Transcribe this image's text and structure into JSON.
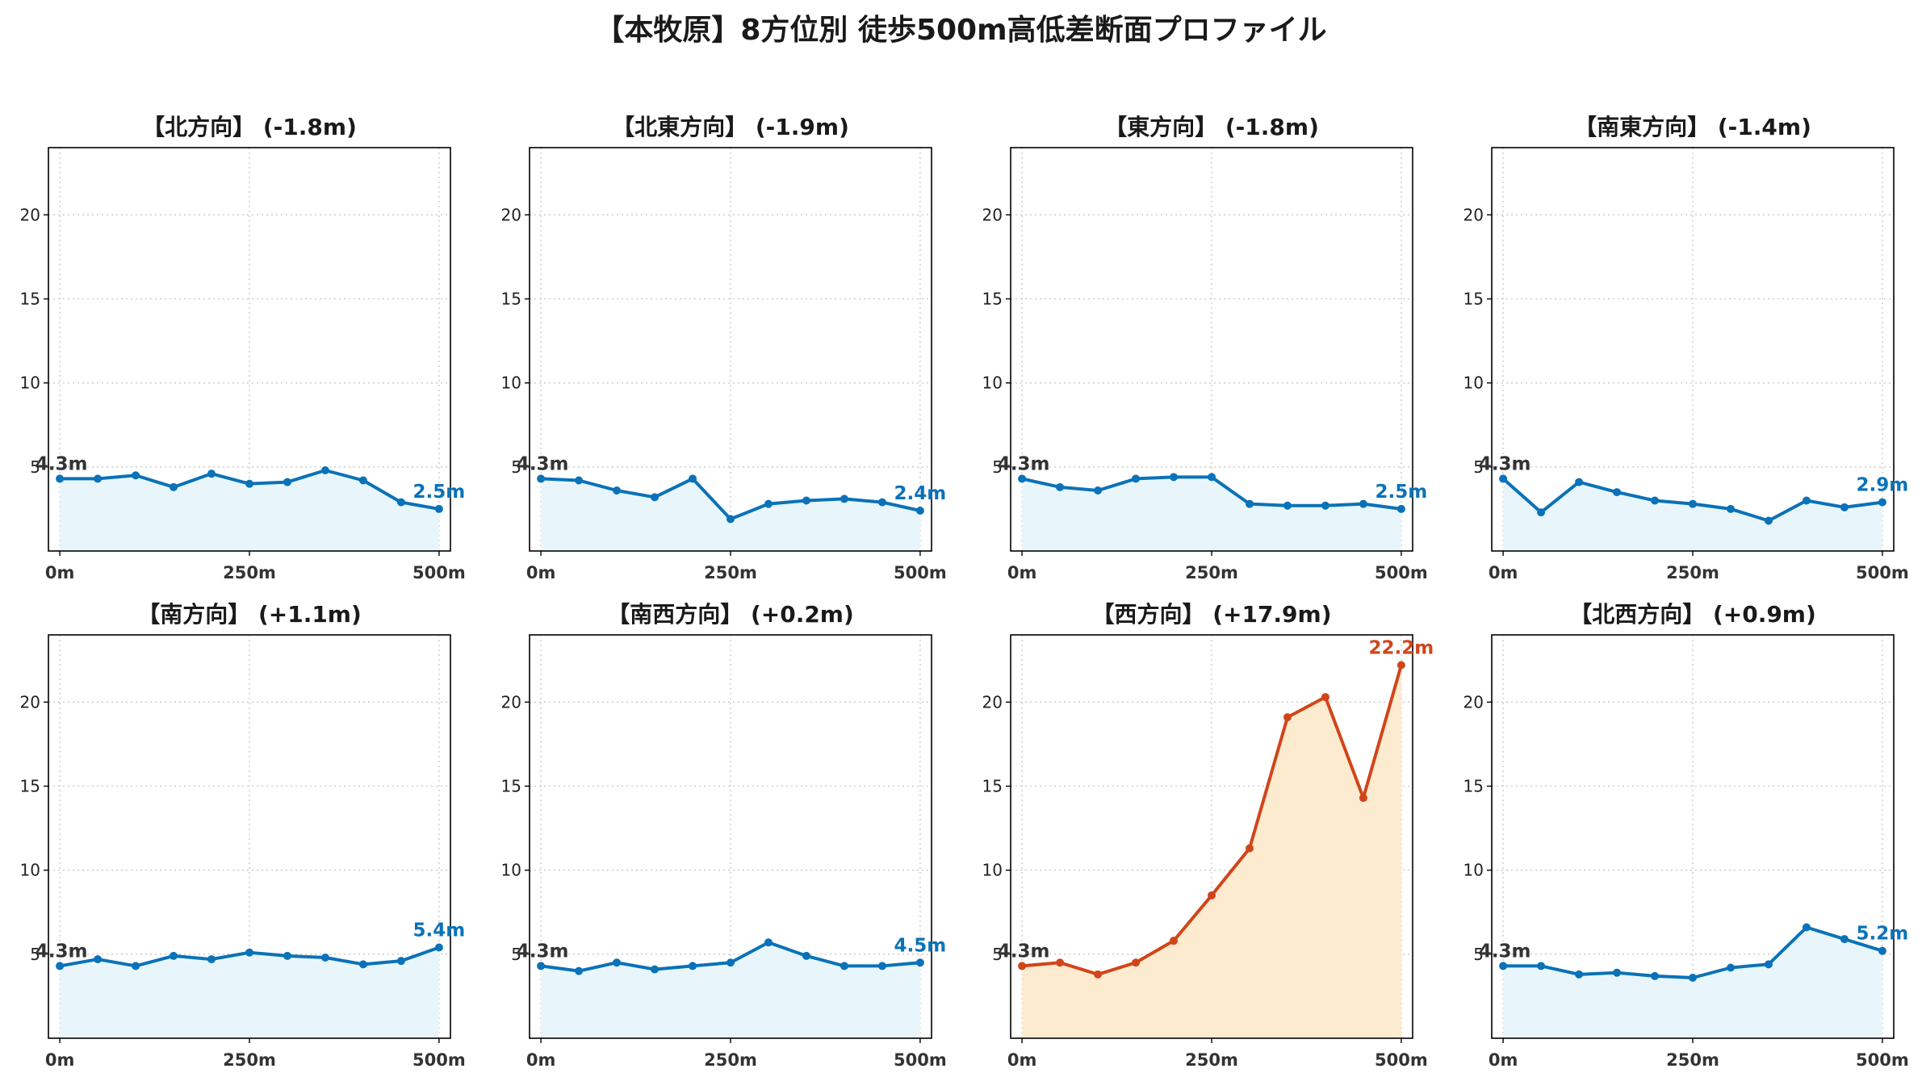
{
  "figure_title": "【本牧原】8方位別 徒歩500m高低差断面プロファイル",
  "colors": {
    "normal": "#0a72b8",
    "normal_fill": "#e8f6fc",
    "highlight": "#d1451a",
    "highlight_fill": "#fdebd0",
    "start_label": "#333333"
  },
  "chart_data": [
    {
      "type": "line",
      "title": "【北方向】 (-1.8m)",
      "x": [
        0,
        50,
        100,
        150,
        200,
        250,
        300,
        350,
        400,
        450,
        500
      ],
      "y": [
        4.3,
        4.3,
        4.5,
        3.8,
        4.6,
        4.0,
        4.1,
        4.8,
        4.2,
        2.9,
        2.5
      ],
      "xticks": [
        "0m",
        "250m",
        "500m"
      ],
      "yticks": [
        5,
        10,
        15,
        20
      ],
      "ylim": [
        0,
        24
      ],
      "xlim": [
        -15,
        515
      ],
      "grid": true,
      "start_label": "4.3m",
      "end_label": "2.5m",
      "highlight": false
    },
    {
      "type": "line",
      "title": "【北東方向】 (-1.9m)",
      "x": [
        0,
        50,
        100,
        150,
        200,
        250,
        300,
        350,
        400,
        450,
        500
      ],
      "y": [
        4.3,
        4.2,
        3.6,
        3.2,
        4.3,
        1.9,
        2.8,
        3.0,
        3.1,
        2.9,
        2.4
      ],
      "xticks": [
        "0m",
        "250m",
        "500m"
      ],
      "yticks": [
        5,
        10,
        15,
        20
      ],
      "ylim": [
        0,
        24
      ],
      "xlim": [
        -15,
        515
      ],
      "grid": true,
      "start_label": "4.3m",
      "end_label": "2.4m",
      "highlight": false
    },
    {
      "type": "line",
      "title": "【東方向】 (-1.8m)",
      "x": [
        0,
        50,
        100,
        150,
        200,
        250,
        300,
        350,
        400,
        450,
        500
      ],
      "y": [
        4.3,
        3.8,
        3.6,
        4.3,
        4.4,
        4.4,
        2.8,
        2.7,
        2.7,
        2.8,
        2.5
      ],
      "xticks": [
        "0m",
        "250m",
        "500m"
      ],
      "yticks": [
        5,
        10,
        15,
        20
      ],
      "ylim": [
        0,
        24
      ],
      "xlim": [
        -15,
        515
      ],
      "grid": true,
      "start_label": "4.3m",
      "end_label": "2.5m",
      "highlight": false
    },
    {
      "type": "line",
      "title": "【南東方向】 (-1.4m)",
      "x": [
        0,
        50,
        100,
        150,
        200,
        250,
        300,
        350,
        400,
        450,
        500
      ],
      "y": [
        4.3,
        2.3,
        4.1,
        3.5,
        3.0,
        2.8,
        2.5,
        1.8,
        3.0,
        2.6,
        2.9
      ],
      "xticks": [
        "0m",
        "250m",
        "500m"
      ],
      "yticks": [
        5,
        10,
        15,
        20
      ],
      "ylim": [
        0,
        24
      ],
      "xlim": [
        -15,
        515
      ],
      "grid": true,
      "start_label": "4.3m",
      "end_label": "2.9m",
      "highlight": false
    },
    {
      "type": "line",
      "title": "【南方向】 (+1.1m)",
      "x": [
        0,
        50,
        100,
        150,
        200,
        250,
        300,
        350,
        400,
        450,
        500
      ],
      "y": [
        4.3,
        4.7,
        4.3,
        4.9,
        4.7,
        5.1,
        4.9,
        4.8,
        4.4,
        4.6,
        5.4
      ],
      "xticks": [
        "0m",
        "250m",
        "500m"
      ],
      "yticks": [
        5,
        10,
        15,
        20
      ],
      "ylim": [
        0,
        24
      ],
      "xlim": [
        -15,
        515
      ],
      "grid": true,
      "start_label": "4.3m",
      "end_label": "5.4m",
      "highlight": false
    },
    {
      "type": "line",
      "title": "【南西方向】 (+0.2m)",
      "x": [
        0,
        50,
        100,
        150,
        200,
        250,
        300,
        350,
        400,
        450,
        500
      ],
      "y": [
        4.3,
        4.0,
        4.5,
        4.1,
        4.3,
        4.5,
        5.7,
        4.9,
        4.3,
        4.3,
        4.5
      ],
      "xticks": [
        "0m",
        "250m",
        "500m"
      ],
      "yticks": [
        5,
        10,
        15,
        20
      ],
      "ylim": [
        0,
        24
      ],
      "xlim": [
        -15,
        515
      ],
      "grid": true,
      "start_label": "4.3m",
      "end_label": "4.5m",
      "highlight": false
    },
    {
      "type": "line",
      "title": "【西方向】 (+17.9m)",
      "x": [
        0,
        50,
        100,
        150,
        200,
        250,
        300,
        350,
        400,
        450,
        500
      ],
      "y": [
        4.3,
        4.5,
        3.8,
        4.5,
        5.8,
        8.5,
        11.3,
        19.1,
        20.3,
        14.3,
        22.2
      ],
      "xticks": [
        "0m",
        "250m",
        "500m"
      ],
      "yticks": [
        5,
        10,
        15,
        20
      ],
      "ylim": [
        0,
        24
      ],
      "xlim": [
        -15,
        515
      ],
      "grid": true,
      "start_label": "4.3m",
      "end_label": "22.2m",
      "highlight": true
    },
    {
      "type": "line",
      "title": "【北西方向】 (+0.9m)",
      "x": [
        0,
        50,
        100,
        150,
        200,
        250,
        300,
        350,
        400,
        450,
        500
      ],
      "y": [
        4.3,
        4.3,
        3.8,
        3.9,
        3.7,
        3.6,
        4.2,
        4.4,
        6.6,
        5.9,
        5.2
      ],
      "xticks": [
        "0m",
        "250m",
        "500m"
      ],
      "yticks": [
        5,
        10,
        15,
        20
      ],
      "ylim": [
        0,
        24
      ],
      "xlim": [
        -15,
        515
      ],
      "grid": true,
      "start_label": "4.3m",
      "end_label": "5.2m",
      "highlight": false
    }
  ]
}
